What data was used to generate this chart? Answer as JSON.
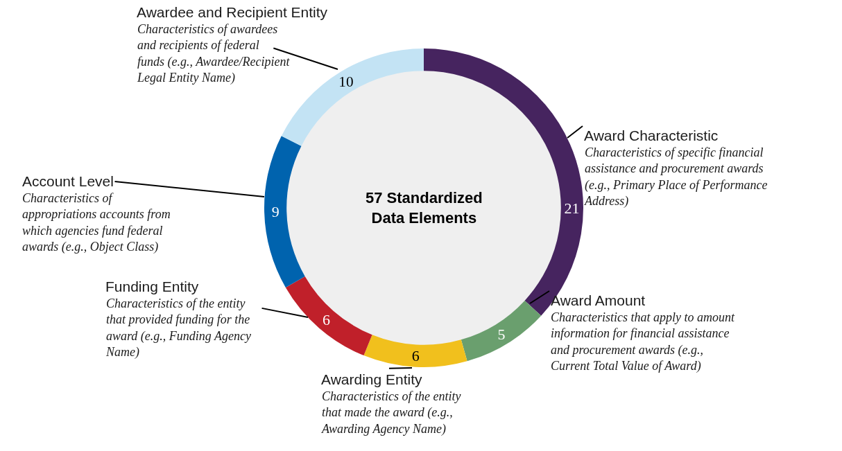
{
  "chart_data": {
    "type": "donut",
    "title": "57 Standardized Data Elements",
    "categories": [
      "Award Characteristic",
      "Award Amount",
      "Awarding Entity",
      "Funding Entity",
      "Account Level",
      "Awardee and Recipient Entity"
    ],
    "values": [
      21,
      5,
      6,
      6,
      9,
      10
    ],
    "colors": [
      "#46245f",
      "#6a9f6e",
      "#f1c01d",
      "#c0202a",
      "#0063ae",
      "#c3e3f4"
    ],
    "data_labels": true,
    "legend": false,
    "annotations": [
      "Characteristics of specific financial assistance and procurement awards (e.g., Primary Place of Performance Address)",
      "Characteristics that apply to amount information for financial assistance and procurement awards (e.g., Current Total Value of Award)",
      "Characteristics of the entity that made the award (e.g., Awarding Agency Name)",
      "Characteristics of the entity that provided funding for the award (e.g., Funding Agency Name)",
      "Characteristics of appropriations accounts from which agencies fund federal awards (e.g., Object Class)",
      "Characteristics of awardees and recipients of federal funds (e.g., Awardee/Recipient Legal Entity Name)"
    ]
  }
}
